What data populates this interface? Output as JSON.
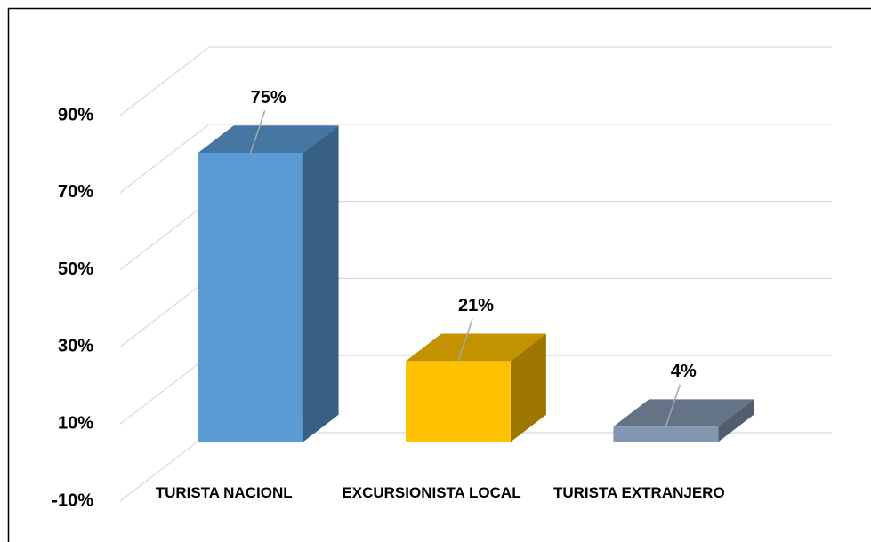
{
  "chart_data": {
    "type": "bar3d",
    "categories": [
      "TURISTA NACIONL",
      "EXCURSIONISTA LOCAL",
      "TURISTA EXTRANJERO"
    ],
    "values": [
      75,
      21,
      4
    ],
    "value_labels": [
      "75%",
      "21%",
      "4%"
    ],
    "colors": [
      "#5b9bd5",
      "#ffc000",
      "#8497b0"
    ],
    "ylim": [
      -10,
      90
    ],
    "yticks": [
      {
        "value": -10,
        "label": "-10%"
      },
      {
        "value": 10,
        "label": "10%"
      },
      {
        "value": 30,
        "label": "30%"
      },
      {
        "value": 50,
        "label": "50%"
      },
      {
        "value": 70,
        "label": "70%"
      },
      {
        "value": 90,
        "label": "90%"
      }
    ],
    "grid": true
  }
}
